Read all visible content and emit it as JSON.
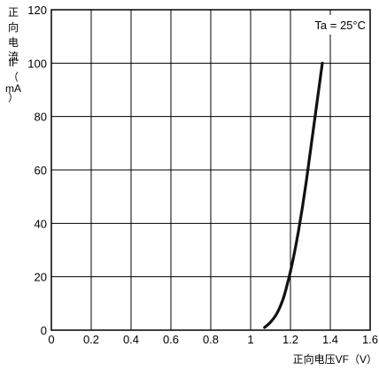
{
  "chart_data": {
    "type": "line",
    "title": "",
    "xlabel": "正向电压VF（V）",
    "ylabel_lines": [
      "正",
      "向",
      "电",
      "流",
      "IF",
      "（",
      "mA",
      "）"
    ],
    "annotation": "Ta = 25°C",
    "xlim": [
      0,
      1.6
    ],
    "ylim": [
      0,
      120
    ],
    "x_ticks": [
      0,
      0.2,
      0.4,
      0.6,
      0.8,
      1,
      1.2,
      1.4,
      1.6
    ],
    "x_tick_labels": [
      "0",
      "0.2",
      "0.4",
      "0.6",
      "0.8",
      "1",
      "1.2",
      "1.4",
      "1.6"
    ],
    "y_ticks": [
      0,
      20,
      40,
      60,
      80,
      100,
      120
    ],
    "y_tick_labels": [
      "0",
      "20",
      "40",
      "60",
      "80",
      "100",
      "120"
    ],
    "grid": true,
    "series": [
      {
        "x": [
          1.07,
          1.1,
          1.13,
          1.16,
          1.18,
          1.2,
          1.22,
          1.24,
          1.26,
          1.28,
          1.3,
          1.32,
          1.34,
          1.36
        ],
        "y": [
          1,
          3,
          6,
          11,
          16,
          22,
          29,
          37,
          46,
          56,
          67,
          78,
          89,
          100
        ]
      }
    ],
    "colors": {
      "line": "#111111",
      "grid": "#000000"
    }
  }
}
